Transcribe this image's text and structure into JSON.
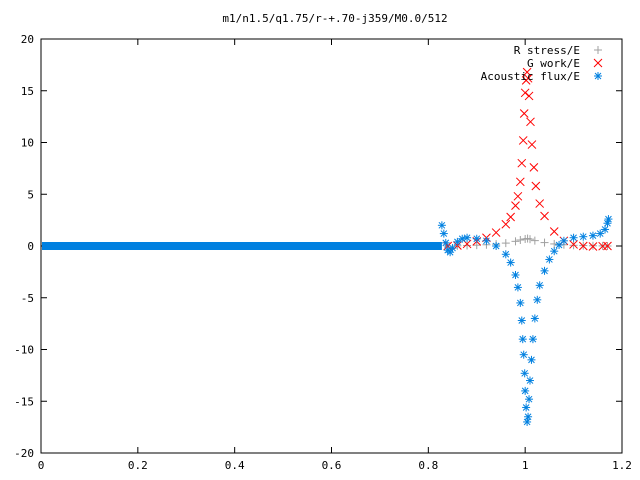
{
  "chart_data": {
    "type": "scatter",
    "title": "m1/n1.5/q1.75/r-+.70-j359/M0.0/512",
    "xlabel": "",
    "ylabel": "",
    "xlim": [
      0,
      1.2
    ],
    "ylim": [
      -20,
      20
    ],
    "x_ticks": [
      "0",
      "0.2",
      "0.4",
      "0.6",
      "0.8",
      "1",
      "1.2"
    ],
    "y_ticks": [
      "20",
      "15",
      "10",
      "5",
      "0",
      "-5",
      "-10",
      "-15",
      "-20"
    ],
    "legend_position": "top-right",
    "grid": false,
    "series": [
      {
        "name": "R stress/E",
        "marker": "plus",
        "color": "#a0a0a0",
        "points": [
          [
            0.84,
            0.0
          ],
          [
            0.86,
            0.02
          ],
          [
            0.88,
            0.05
          ],
          [
            0.9,
            0.08
          ],
          [
            0.92,
            0.12
          ],
          [
            0.94,
            0.18
          ],
          [
            0.96,
            0.28
          ],
          [
            0.98,
            0.45
          ],
          [
            0.99,
            0.58
          ],
          [
            1.0,
            0.68
          ],
          [
            1.005,
            0.72
          ],
          [
            1.01,
            0.66
          ],
          [
            1.02,
            0.52
          ],
          [
            1.04,
            0.33
          ],
          [
            1.06,
            0.2
          ],
          [
            1.08,
            0.12
          ],
          [
            1.1,
            0.07
          ],
          [
            1.12,
            0.04
          ],
          [
            1.14,
            0.02
          ],
          [
            1.16,
            0.01
          ],
          [
            1.17,
            0.0
          ]
        ]
      },
      {
        "name": "G work/E",
        "marker": "cross",
        "color": "#ff0000",
        "points": [
          [
            0.84,
            0.0
          ],
          [
            0.86,
            0.05
          ],
          [
            0.88,
            0.2
          ],
          [
            0.9,
            0.45
          ],
          [
            0.92,
            0.8
          ],
          [
            0.94,
            1.3
          ],
          [
            0.96,
            2.1
          ],
          [
            0.97,
            2.8
          ],
          [
            0.98,
            3.9
          ],
          [
            0.985,
            4.8
          ],
          [
            0.99,
            6.2
          ],
          [
            0.993,
            8.0
          ],
          [
            0.996,
            10.2
          ],
          [
            0.998,
            12.8
          ],
          [
            1.0,
            14.8
          ],
          [
            1.002,
            16.0
          ],
          [
            1.004,
            16.8
          ],
          [
            1.006,
            16.2
          ],
          [
            1.008,
            14.5
          ],
          [
            1.011,
            12.0
          ],
          [
            1.014,
            9.8
          ],
          [
            1.018,
            7.6
          ],
          [
            1.022,
            5.8
          ],
          [
            1.03,
            4.1
          ],
          [
            1.04,
            2.9
          ],
          [
            1.06,
            1.4
          ],
          [
            1.08,
            0.5
          ],
          [
            1.1,
            0.15
          ],
          [
            1.12,
            0.0
          ],
          [
            1.14,
            -0.05
          ],
          [
            1.16,
            -0.02
          ],
          [
            1.17,
            0.0
          ]
        ]
      },
      {
        "name": "Acoustic flux/E",
        "marker": "star",
        "color": "#0080e0",
        "points": [
          [
            0.828,
            2.0
          ],
          [
            0.832,
            1.2
          ],
          [
            0.836,
            0.3
          ],
          [
            0.84,
            -0.4
          ],
          [
            0.845,
            -0.6
          ],
          [
            0.85,
            -0.2
          ],
          [
            0.86,
            0.4
          ],
          [
            0.87,
            0.7
          ],
          [
            0.88,
            0.8
          ],
          [
            0.9,
            0.7
          ],
          [
            0.92,
            0.5
          ],
          [
            0.94,
            0.0
          ],
          [
            0.96,
            -0.8
          ],
          [
            0.97,
            -1.6
          ],
          [
            0.98,
            -2.8
          ],
          [
            0.985,
            -4.0
          ],
          [
            0.99,
            -5.5
          ],
          [
            0.993,
            -7.2
          ],
          [
            0.995,
            -9.0
          ],
          [
            0.997,
            -10.5
          ],
          [
            0.999,
            -12.3
          ],
          [
            1.0,
            -14.0
          ],
          [
            1.002,
            -15.6
          ],
          [
            1.004,
            -17.0
          ],
          [
            1.006,
            -16.5
          ],
          [
            1.008,
            -14.8
          ],
          [
            1.01,
            -13.0
          ],
          [
            1.013,
            -11.0
          ],
          [
            1.016,
            -9.0
          ],
          [
            1.02,
            -7.0
          ],
          [
            1.025,
            -5.2
          ],
          [
            1.03,
            -3.8
          ],
          [
            1.04,
            -2.4
          ],
          [
            1.05,
            -1.3
          ],
          [
            1.06,
            -0.5
          ],
          [
            1.07,
            0.1
          ],
          [
            1.08,
            0.5
          ],
          [
            1.1,
            0.8
          ],
          [
            1.12,
            0.9
          ],
          [
            1.14,
            1.0
          ],
          [
            1.155,
            1.2
          ],
          [
            1.165,
            1.6
          ],
          [
            1.17,
            2.2
          ],
          [
            1.172,
            2.6
          ]
        ]
      }
    ]
  }
}
